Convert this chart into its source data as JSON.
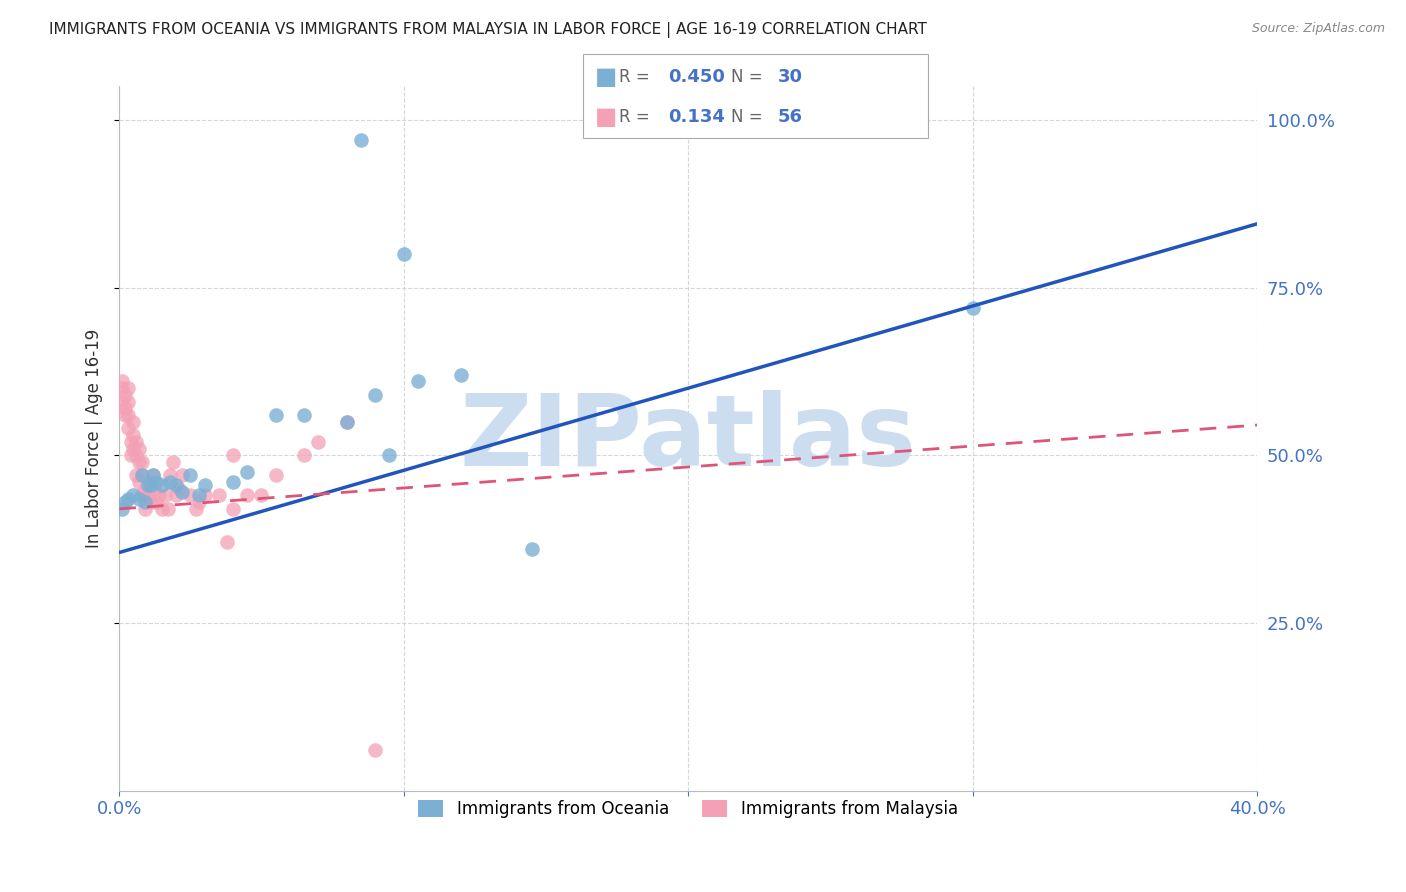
{
  "title": "IMMIGRANTS FROM OCEANIA VS IMMIGRANTS FROM MALAYSIA IN LABOR FORCE | AGE 16-19 CORRELATION CHART",
  "source": "Source: ZipAtlas.com",
  "ylabel": "In Labor Force | Age 16-19",
  "xlim": [
    0.0,
    0.4
  ],
  "ylim": [
    0.0,
    1.05
  ],
  "xtick_positions": [
    0.0,
    0.1,
    0.2,
    0.3,
    0.4
  ],
  "xtick_labels": [
    "0.0%",
    "",
    "",
    "",
    "40.0%"
  ],
  "ytick_positions": [
    0.25,
    0.5,
    0.75,
    1.0
  ],
  "ytick_labels": [
    "25.0%",
    "50.0%",
    "75.0%",
    "100.0%"
  ],
  "oceania_color": "#7bafd4",
  "malaysia_color": "#f4a0b5",
  "oceania_line_color": "#2255bb",
  "malaysia_line_color": "#dd5577",
  "watermark": "ZIPatlas",
  "watermark_color": "#ccddf0",
  "axis_label_color": "#4472c4",
  "grid_color": "#cccccc",
  "title_fontsize": 11,
  "oceania_x": [
    0.001,
    0.002,
    0.003,
    0.005,
    0.007,
    0.008,
    0.009,
    0.01,
    0.011,
    0.012,
    0.013,
    0.015,
    0.018,
    0.02,
    0.022,
    0.025,
    0.028,
    0.03,
    0.04,
    0.045,
    0.055,
    0.065,
    0.08,
    0.09,
    0.095,
    0.105,
    0.12,
    0.145,
    0.3,
    0.085,
    0.1
  ],
  "oceania_y": [
    0.42,
    0.43,
    0.435,
    0.44,
    0.435,
    0.47,
    0.43,
    0.455,
    0.455,
    0.47,
    0.46,
    0.455,
    0.46,
    0.455,
    0.445,
    0.47,
    0.44,
    0.455,
    0.46,
    0.475,
    0.56,
    0.56,
    0.55,
    0.59,
    0.5,
    0.61,
    0.62,
    0.36,
    0.72,
    0.97,
    0.8
  ],
  "malaysia_x": [
    0.001,
    0.001,
    0.001,
    0.002,
    0.002,
    0.002,
    0.003,
    0.003,
    0.003,
    0.003,
    0.004,
    0.004,
    0.005,
    0.005,
    0.005,
    0.006,
    0.006,
    0.006,
    0.007,
    0.007,
    0.007,
    0.008,
    0.008,
    0.008,
    0.009,
    0.009,
    0.01,
    0.01,
    0.011,
    0.012,
    0.012,
    0.013,
    0.014,
    0.015,
    0.016,
    0.017,
    0.018,
    0.019,
    0.02,
    0.021,
    0.022,
    0.025,
    0.027,
    0.028,
    0.03,
    0.035,
    0.038,
    0.04,
    0.045,
    0.05,
    0.055,
    0.065,
    0.07,
    0.08,
    0.09,
    0.04
  ],
  "malaysia_y": [
    0.58,
    0.6,
    0.61,
    0.56,
    0.59,
    0.57,
    0.54,
    0.56,
    0.58,
    0.6,
    0.5,
    0.52,
    0.51,
    0.53,
    0.55,
    0.47,
    0.5,
    0.52,
    0.46,
    0.49,
    0.51,
    0.44,
    0.47,
    0.49,
    0.42,
    0.45,
    0.44,
    0.46,
    0.43,
    0.45,
    0.47,
    0.43,
    0.44,
    0.42,
    0.44,
    0.42,
    0.47,
    0.49,
    0.44,
    0.45,
    0.47,
    0.44,
    0.42,
    0.43,
    0.44,
    0.44,
    0.37,
    0.42,
    0.44,
    0.44,
    0.47,
    0.5,
    0.52,
    0.55,
    0.06,
    0.5
  ],
  "blue_line_x": [
    0.0,
    0.4
  ],
  "blue_line_y": [
    0.355,
    0.845
  ],
  "pink_line_x": [
    0.0,
    0.4
  ],
  "pink_line_y": [
    0.42,
    0.545
  ]
}
